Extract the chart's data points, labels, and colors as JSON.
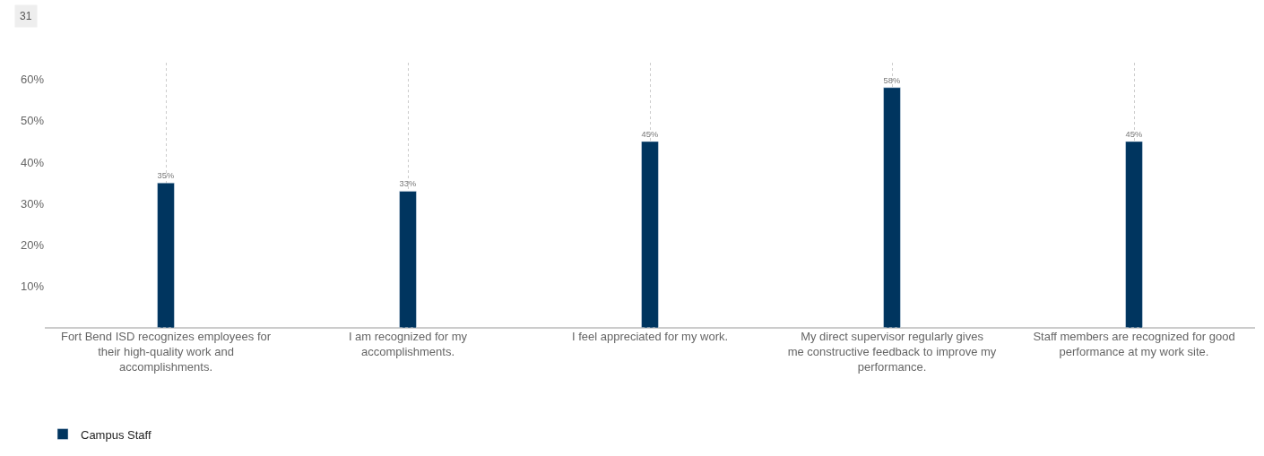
{
  "chart_data": {
    "type": "bar",
    "annotations": [
      "31"
    ],
    "categories": [
      "Fort Bend ISD recognizes employees for their high-quality work and accomplishments.",
      "I am recognized for my accomplishments.",
      "I feel appreciated for my work.",
      "My direct supervisor regularly gives me constructive feedback to improve my performance.",
      "Staff members are recognized for good performance at my work site."
    ],
    "series": [
      {
        "name": "Campus Staff",
        "color": "#00355f",
        "values": [
          35,
          33,
          45,
          58,
          45
        ],
        "value_labels": [
          "35%",
          "33%",
          "45%",
          "58%",
          "45%"
        ]
      }
    ],
    "ylim": [
      0,
      64
    ],
    "yticks": [
      {
        "value": 10,
        "label": "10%"
      },
      {
        "value": 20,
        "label": "20%"
      },
      {
        "value": 30,
        "label": "30%"
      },
      {
        "value": 40,
        "label": "40%"
      },
      {
        "value": 50,
        "label": "50%"
      },
      {
        "value": 60,
        "label": "60%"
      }
    ],
    "grid": "x",
    "legend": "bottom left"
  }
}
